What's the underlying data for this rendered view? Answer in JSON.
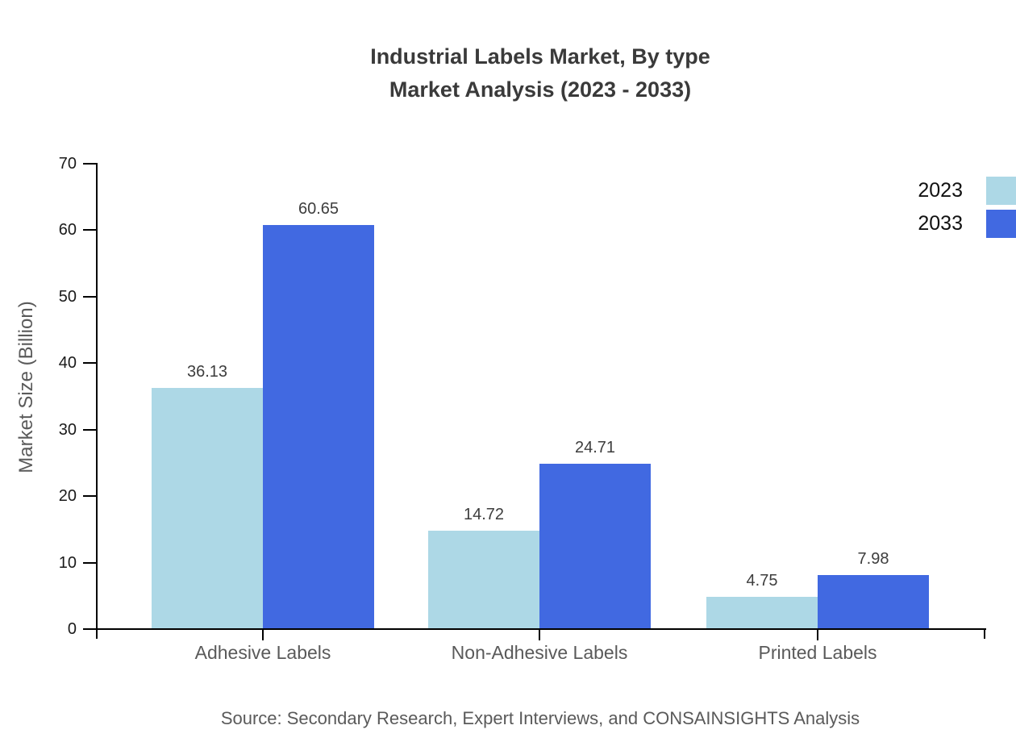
{
  "title": {
    "line1": "Industrial Labels Market, By type",
    "line2": "Market Analysis (2023 - 2033)"
  },
  "source_note": "Source: Secondary Research, Expert Interviews, and CONSAINSIGHTS Analysis",
  "chart_data": {
    "type": "bar",
    "title": "Industrial Labels Market, By type",
    "subtitle": "Market Analysis (2023 - 2033)",
    "categories": [
      "Adhesive Labels",
      "Non-Adhesive Labels",
      "Printed Labels"
    ],
    "series": [
      {
        "name": "2023",
        "color": "#add8e6",
        "values": [
          36.13,
          14.72,
          4.75
        ]
      },
      {
        "name": "2033",
        "color": "#4169e1",
        "values": [
          60.65,
          24.71,
          7.98
        ]
      }
    ],
    "xlabel": "",
    "ylabel": "Market Size (Billion)",
    "ylim": [
      0,
      70
    ],
    "yticks": [
      0,
      10,
      20,
      30,
      40,
      50,
      60,
      70
    ],
    "grid": false,
    "legend_position": "top-right",
    "bar_value_labels": true,
    "axis_color": "#000000"
  }
}
